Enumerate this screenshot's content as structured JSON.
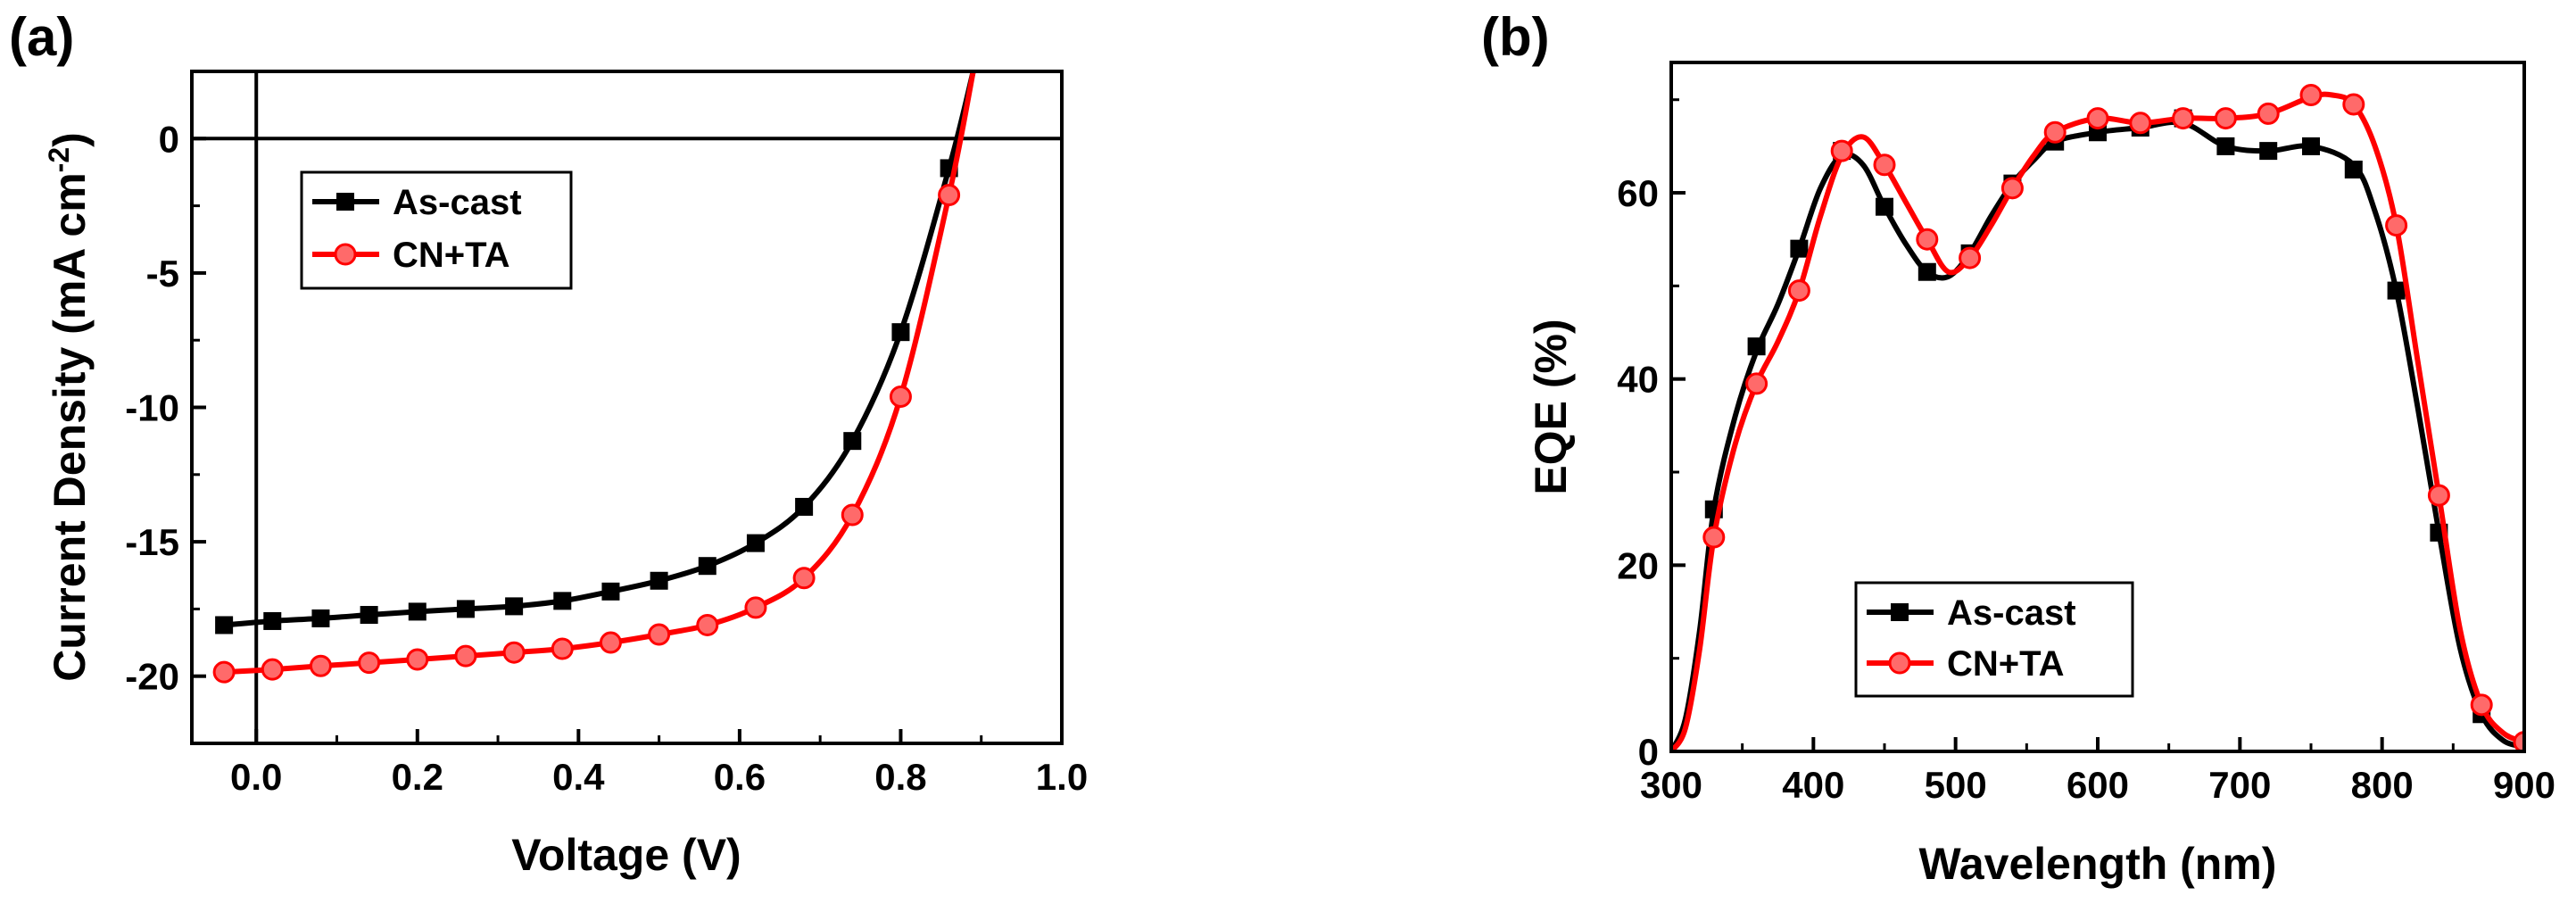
{
  "chart_data": [
    {
      "type": "line",
      "panel_label": "(a)",
      "xlabel": "Voltage (V)",
      "ylabel_main": "Current Density (mA cm",
      "ylabel_sup": "-2",
      "ylabel_close": ")",
      "xlim": [
        -0.08,
        1.0
      ],
      "ylim": [
        -22.5,
        2.5
      ],
      "xticks": [
        0.0,
        0.2,
        0.4,
        0.6,
        0.8,
        1.0
      ],
      "xtick_labels": [
        "0.0",
        "0.2",
        "0.4",
        "0.6",
        "0.8",
        "1.0"
      ],
      "yticks": [
        0,
        -5,
        -10,
        -15,
        -20
      ],
      "ytick_labels": [
        "0",
        "-5",
        "-10",
        "-15",
        "-20"
      ],
      "reference_lines": {
        "x": 0,
        "y": 0
      },
      "legend_position": "upper-left",
      "series": [
        {
          "name": "As-cast",
          "color": "#000000",
          "marker": "square",
          "x": [
            -0.04,
            0.02,
            0.08,
            0.14,
            0.2,
            0.26,
            0.32,
            0.38,
            0.44,
            0.5,
            0.56,
            0.62,
            0.68,
            0.74,
            0.8,
            0.86,
            0.89
          ],
          "y": [
            -18.1,
            -17.95,
            -17.85,
            -17.72,
            -17.6,
            -17.5,
            -17.4,
            -17.2,
            -16.85,
            -16.45,
            -15.9,
            -15.05,
            -13.7,
            -11.25,
            -7.2,
            -1.1,
            2.5
          ]
        },
        {
          "name": "CN+TA",
          "color": "#ff0000",
          "marker": "circle",
          "x": [
            -0.04,
            0.02,
            0.08,
            0.14,
            0.2,
            0.26,
            0.32,
            0.38,
            0.44,
            0.5,
            0.56,
            0.62,
            0.68,
            0.74,
            0.8,
            0.86,
            0.89
          ],
          "y": [
            -19.85,
            -19.75,
            -19.62,
            -19.5,
            -19.38,
            -19.25,
            -19.12,
            -18.98,
            -18.75,
            -18.45,
            -18.1,
            -17.45,
            -16.35,
            -14.0,
            -9.6,
            -2.1,
            2.5
          ]
        }
      ]
    },
    {
      "type": "line",
      "panel_label": "(b)",
      "xlabel": "Wavelength (nm)",
      "ylabel": "EQE (%)",
      "xlim": [
        300,
        900
      ],
      "ylim": [
        0,
        74
      ],
      "xticks": [
        300,
        400,
        500,
        600,
        700,
        800,
        900
      ],
      "xtick_labels": [
        "300",
        "400",
        "500",
        "600",
        "700",
        "800",
        "900"
      ],
      "yticks": [
        0,
        20,
        40,
        60
      ],
      "ytick_labels": [
        "0",
        "20",
        "40",
        "60"
      ],
      "legend_position": "lower-center",
      "series": [
        {
          "name": "As-cast",
          "color": "#000000",
          "marker": "square",
          "x": [
            300,
            310,
            320,
            330,
            345,
            360,
            375,
            390,
            405,
            420,
            435,
            450,
            465,
            480,
            495,
            510,
            525,
            540,
            555,
            570,
            600,
            630,
            660,
            690,
            720,
            750,
            780,
            795,
            810,
            825,
            840,
            855,
            870,
            885,
            900
          ],
          "y": [
            0,
            3.5,
            13,
            26,
            36,
            43,
            48,
            54,
            60.5,
            64,
            63,
            58.5,
            54.5,
            51.5,
            51,
            53.5,
            57.5,
            61,
            63.5,
            65.5,
            66.5,
            67,
            67.5,
            65,
            64.5,
            65,
            63,
            58,
            49.5,
            37,
            23.5,
            11,
            4,
            1.2,
            0.5
          ],
          "markers": [
            [
              330,
              26
            ],
            [
              360,
              43.5
            ],
            [
              390,
              54
            ],
            [
              420,
              64.5
            ],
            [
              450,
              58.5
            ],
            [
              480,
              51.5
            ],
            [
              510,
              53.5
            ],
            [
              540,
              61
            ],
            [
              570,
              65.5
            ],
            [
              600,
              66.5
            ],
            [
              630,
              67
            ],
            [
              660,
              68
            ],
            [
              690,
              65
            ],
            [
              720,
              64.5
            ],
            [
              750,
              65
            ],
            [
              780,
              62.5
            ],
            [
              810,
              49.5
            ],
            [
              840,
              23.5
            ],
            [
              870,
              4
            ]
          ]
        },
        {
          "name": "CN+TA",
          "color": "#ff0000",
          "marker": "circle",
          "x": [
            300,
            310,
            320,
            330,
            345,
            360,
            375,
            390,
            405,
            420,
            435,
            450,
            465,
            480,
            495,
            510,
            525,
            540,
            555,
            570,
            600,
            630,
            660,
            690,
            720,
            750,
            765,
            780,
            795,
            810,
            825,
            840,
            855,
            870,
            885,
            900
          ],
          "y": [
            0,
            2.5,
            11,
            23,
            33,
            39.5,
            44,
            49.5,
            57.5,
            64,
            66,
            63,
            59,
            55,
            51.5,
            53,
            56.5,
            60.5,
            64,
            66.5,
            68,
            67.5,
            68,
            68,
            68.5,
            70.3,
            70.5,
            69.5,
            65,
            56.5,
            42,
            27.5,
            13,
            5,
            2,
            1
          ],
          "markers": [
            [
              330,
              23
            ],
            [
              360,
              39.5
            ],
            [
              390,
              49.5
            ],
            [
              420,
              64.5
            ],
            [
              450,
              63
            ],
            [
              480,
              55
            ],
            [
              510,
              53
            ],
            [
              540,
              60.5
            ],
            [
              570,
              66.5
            ],
            [
              600,
              68
            ],
            [
              630,
              67.5
            ],
            [
              660,
              68
            ],
            [
              690,
              68
            ],
            [
              720,
              68.5
            ],
            [
              750,
              70.5
            ],
            [
              780,
              69.5
            ],
            [
              810,
              56.5
            ],
            [
              840,
              27.5
            ],
            [
              870,
              5
            ],
            [
              900,
              1
            ]
          ]
        }
      ]
    }
  ]
}
